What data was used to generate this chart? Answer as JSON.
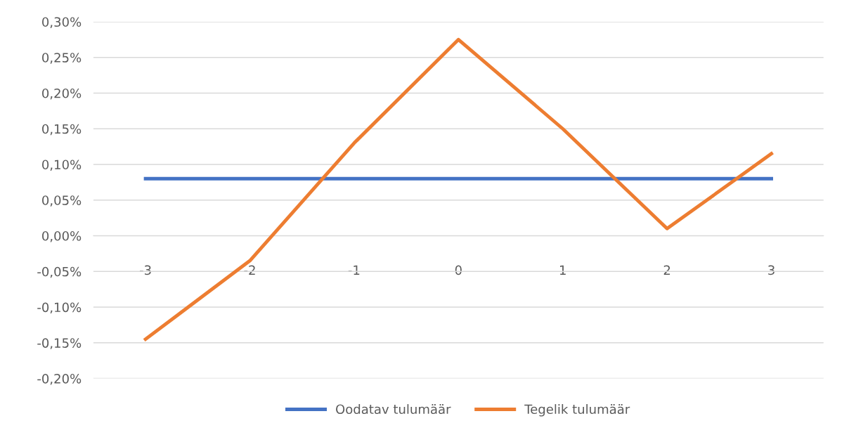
{
  "chart_data": {
    "type": "line",
    "categories": [
      "-3",
      "-2",
      "-1",
      "0",
      "1",
      "2",
      "3"
    ],
    "series": [
      {
        "name": "Oodatav tulumäär",
        "color": "#4472c4",
        "values": [
          0.08,
          0.08,
          0.08,
          0.08,
          0.08,
          0.08,
          0.08
        ]
      },
      {
        "name": "Tegelik tulumäär",
        "color": "#ed7d31",
        "values": [
          -0.145,
          -0.035,
          0.13,
          0.275,
          0.15,
          0.01,
          0.115
        ]
      }
    ],
    "ylim": [
      -0.2,
      0.3
    ],
    "yticks": [
      {
        "value": -0.2,
        "label": "-0,20%"
      },
      {
        "value": -0.15,
        "label": "-0,15%"
      },
      {
        "value": -0.1,
        "label": "-0,10%"
      },
      {
        "value": -0.05,
        "label": "-0,05%"
      },
      {
        "value": 0,
        "label": "0,00%"
      },
      {
        "value": 0.05,
        "label": "0,05%"
      },
      {
        "value": 0.1,
        "label": "0,10%"
      },
      {
        "value": 0.15,
        "label": "0,15%"
      },
      {
        "value": 0.2,
        "label": "0,20%"
      },
      {
        "value": 0.25,
        "label": "0,25%"
      },
      {
        "value": 0.3,
        "label": "0,30%"
      }
    ],
    "grid": "y",
    "legend": "bottom",
    "marker": "none",
    "line_style": "solid"
  }
}
